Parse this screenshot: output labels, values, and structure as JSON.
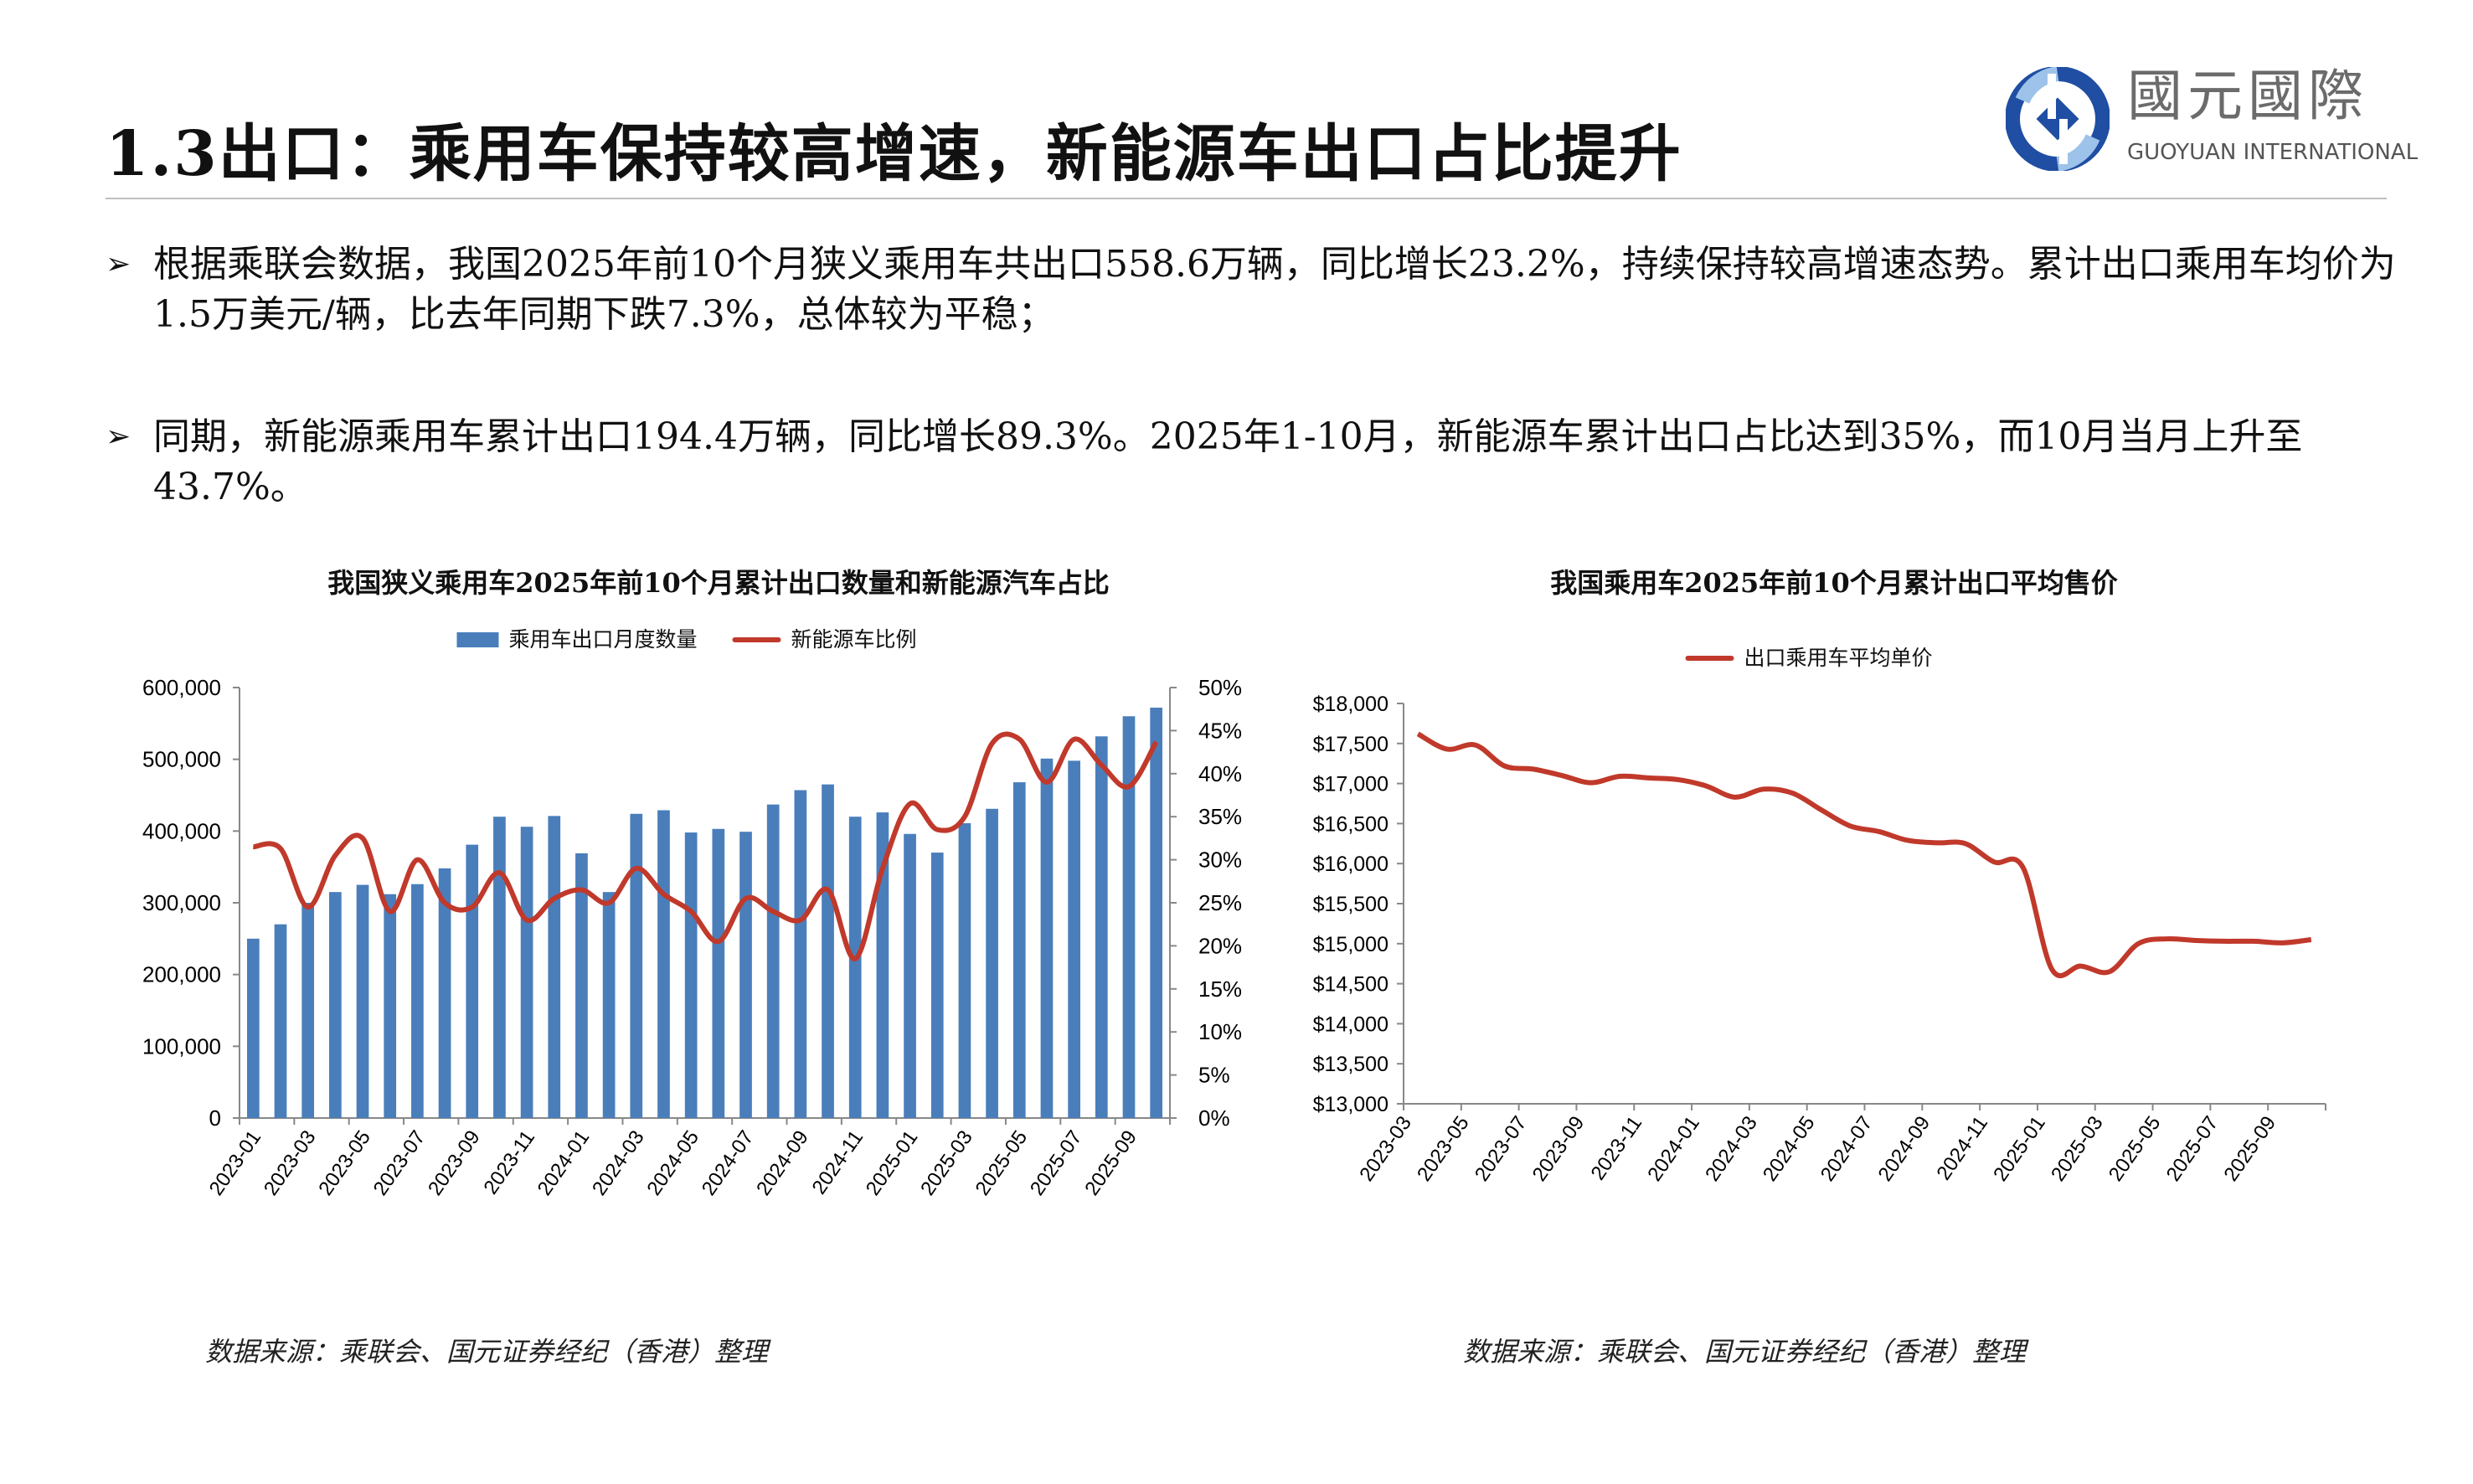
{
  "header": {
    "title": "1.3出口：乘用车保持较高增速，新能源车出口占比提升",
    "logo": {
      "name_cn": "國元國際",
      "name_en": "GUOYUAN INTERNATIONAL",
      "brand_color": "#1f4ea3"
    }
  },
  "bullets": [
    {
      "icon": "arrow-bullet-icon",
      "text": "根据乘联会数据，我国2025年前10个月狭义乘用车共出口558.6万辆，同比增长23.2%，持续保持较高增速态势。累计出口乘用车均价为1.5万美元/辆，比去年同期下跌7.3%，总体较为平稳；"
    },
    {
      "icon": "arrow-bullet-icon",
      "text": "同期，新能源乘用车累计出口194.4万辆，同比增长89.3%。2025年1-10月，新能源车累计出口占比达到35%，而10月当月上升至43.7%。"
    }
  ],
  "sources": [
    "数据来源：乘联会、国元证券经纪（香港）整理",
    "数据来源：乘联会、国元证券经纪（香港）整理"
  ],
  "chart_data": [
    {
      "type": "bar+line",
      "title": "我国狭义乘用车2025年前10个月累计出口数量和新能源汽车占比",
      "legend_placement": "top",
      "categories": [
        "2023-01",
        "2023-02",
        "2023-03",
        "2023-04",
        "2023-05",
        "2023-06",
        "2023-07",
        "2023-08",
        "2023-09",
        "2023-10",
        "2023-11",
        "2023-12",
        "2024-01",
        "2024-02",
        "2024-03",
        "2024-04",
        "2024-05",
        "2024-06",
        "2024-07",
        "2024-08",
        "2024-09",
        "2024-10",
        "2024-11",
        "2024-12",
        "2025-01",
        "2025-02",
        "2025-03",
        "2025-04",
        "2025-05",
        "2025-06",
        "2025-07",
        "2025-08",
        "2025-09",
        "2025-10"
      ],
      "xtick_labels": [
        "2023-01",
        "2023-03",
        "2023-05",
        "2023-07",
        "2023-09",
        "2023-11",
        "2024-01",
        "2024-03",
        "2024-05",
        "2024-07",
        "2024-09",
        "2024-11",
        "2025-01",
        "2025-03",
        "2025-05",
        "2025-07",
        "2025-09"
      ],
      "series": [
        {
          "name": "乘用车出口月度数量",
          "type": "bar",
          "axis": "left",
          "color": "#4a7ebb",
          "values": [
            250000,
            270000,
            300000,
            315000,
            325000,
            312000,
            326000,
            348000,
            381000,
            420000,
            406000,
            421000,
            369000,
            315000,
            424000,
            429000,
            398000,
            403000,
            399000,
            437000,
            457000,
            465000,
            420000,
            426000,
            396000,
            370000,
            411000,
            431000,
            468000,
            501000,
            498000,
            532000,
            560000,
            572000
          ]
        },
        {
          "name": "新能源车比例",
          "type": "line",
          "axis": "right",
          "color": "#c0392b",
          "values": [
            31.5,
            31.3,
            24.5,
            30.5,
            32.5,
            24.0,
            30.0,
            25.0,
            24.5,
            28.5,
            23.0,
            25.5,
            26.5,
            25.0,
            29.0,
            26.0,
            24.0,
            20.5,
            25.5,
            24.0,
            23.0,
            26.5,
            18.5,
            29.0,
            36.5,
            33.5,
            35.0,
            43.5,
            44.0,
            39.0,
            44.0,
            41.0,
            38.5,
            43.7
          ]
        }
      ],
      "y_left": {
        "range": [
          0,
          600000
        ],
        "ticks": [
          "0",
          "100,000",
          "200,000",
          "300,000",
          "400,000",
          "500,000",
          "600,000"
        ]
      },
      "y_right": {
        "range": [
          0,
          50
        ],
        "ticks": [
          "0%",
          "5%",
          "10%",
          "15%",
          "20%",
          "25%",
          "30%",
          "35%",
          "40%",
          "45%",
          "50%"
        ]
      },
      "grid": false
    },
    {
      "type": "line",
      "title": "我国乘用车2025年前10个月累计出口平均售价",
      "legend_placement": "top",
      "categories": [
        "2023-03",
        "2023-04",
        "2023-05",
        "2023-06",
        "2023-07",
        "2023-08",
        "2023-09",
        "2023-10",
        "2023-11",
        "2023-12",
        "2024-01",
        "2024-02",
        "2024-03",
        "2024-04",
        "2024-05",
        "2024-06",
        "2024-07",
        "2024-08",
        "2024-09",
        "2024-10",
        "2024-11",
        "2024-12",
        "2025-01",
        "2025-02",
        "2025-03",
        "2025-04",
        "2025-05",
        "2025-06",
        "2025-07",
        "2025-08",
        "2025-09",
        "2025-10"
      ],
      "xtick_labels": [
        "2023-03",
        "2023-05",
        "2023-07",
        "2023-09",
        "2023-11",
        "2024-01",
        "2024-03",
        "2024-05",
        "2024-07",
        "2024-09",
        "2024-11",
        "2025-01",
        "2025-03",
        "2025-05",
        "2025-07",
        "2025-09"
      ],
      "series": [
        {
          "name": "出口乘用车平均单价",
          "color": "#c0392b",
          "values": [
            17620,
            17430,
            17480,
            17220,
            17180,
            17100,
            17010,
            17090,
            17070,
            17050,
            16970,
            16830,
            16930,
            16880,
            16670,
            16470,
            16400,
            16290,
            16260,
            16250,
            16020,
            15950,
            14680,
            14720,
            14650,
            15000,
            15060,
            15040,
            15030,
            15030,
            15010,
            15050
          ]
        }
      ],
      "y": {
        "range": [
          13000,
          18000
        ],
        "ticks": [
          "$13,000",
          "$13,500",
          "$14,000",
          "$14,500",
          "$15,000",
          "$15,500",
          "$16,000",
          "$16,500",
          "$17,000",
          "$17,500",
          "$18,000"
        ]
      },
      "grid": false
    }
  ]
}
